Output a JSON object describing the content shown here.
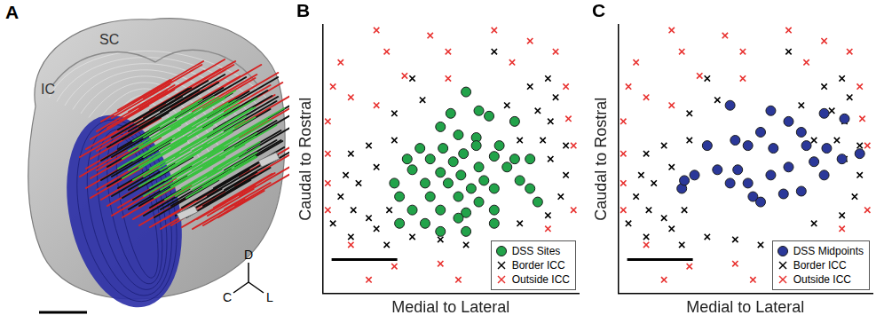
{
  "image_panel": {
    "panel_label": "A",
    "region_labels": [
      "SC",
      "IC"
    ],
    "direction_labels": [
      "D",
      "C",
      "L"
    ]
  },
  "chart_data": [
    {
      "panel_label": "B",
      "type": "scatter",
      "x_label": "Medial to Lateral",
      "y_label": "Caudal to Rostral",
      "xlim": [
        0,
        100
      ],
      "ylim": [
        0,
        100
      ],
      "tick_labels": false,
      "grid": false,
      "legend": "lower right",
      "series": [
        {
          "name": "DSS Sites",
          "color": "#22a34a",
          "marker": "circle",
          "x": [
            56,
            61,
            50,
            65,
            75,
            46,
            53,
            60,
            60,
            69,
            38,
            47,
            55,
            42,
            67,
            81,
            75,
            33,
            51,
            61,
            72,
            35,
            46,
            54,
            63,
            77,
            28,
            40,
            49,
            58,
            67,
            81,
            30,
            42,
            53,
            61,
            35,
            46,
            56,
            67,
            30,
            40,
            53,
            67,
            56,
            46,
            84
          ],
          "y": [
            75,
            68,
            67,
            66,
            64,
            62,
            59,
            58,
            55,
            55,
            54,
            54,
            52,
            50,
            51,
            50,
            50,
            50,
            49,
            47,
            47,
            46,
            45,
            44,
            42,
            42,
            41,
            41,
            41,
            39,
            39,
            39,
            36,
            36,
            36,
            34,
            31,
            31,
            30,
            31,
            26,
            26,
            28,
            26,
            23,
            23,
            34
          ]
        },
        {
          "name": "Border ICC",
          "color": "#000000",
          "marker": "x",
          "x": [
            35,
            67,
            88,
            81,
            84,
            89,
            95,
            39,
            28,
            18,
            11,
            9,
            14,
            7,
            12,
            18,
            4,
            11,
            21,
            25,
            35,
            46,
            56,
            77,
            88,
            93,
            95,
            89,
            86,
            77,
            72,
            28,
            21,
            26,
            91
          ],
          "y": [
            80,
            90,
            80,
            77,
            68,
            64,
            55,
            72,
            67,
            55,
            52,
            44,
            41,
            36,
            31,
            28,
            26,
            21,
            24,
            18,
            21,
            20,
            18,
            26,
            29,
            36,
            44,
            50,
            57,
            57,
            70,
            57,
            47,
            31,
            73
          ]
        },
        {
          "name": "Outside ICC",
          "color": "#e8312f",
          "marker": "x",
          "x": [
            21,
            42,
            67,
            81,
            91,
            7,
            25,
            49,
            32,
            74,
            95,
            11,
            2,
            96,
            2,
            21,
            98,
            88,
            2,
            2,
            11,
            28,
            46,
            98,
            49,
            4,
            18,
            53
          ],
          "y": [
            98,
            96,
            98,
            94,
            90,
            86,
            90,
            90,
            81,
            86,
            77,
            73,
            64,
            65,
            52,
            70,
            55,
            24,
            41,
            31,
            18,
            10,
            11,
            31,
            80,
            77,
            5,
            5
          ]
        }
      ]
    },
    {
      "panel_label": "C",
      "type": "scatter",
      "x_label": "Medial to Lateral",
      "y_label": "Caudal to Rostral",
      "xlim": [
        0,
        100
      ],
      "ylim": [
        0,
        100
      ],
      "tick_labels": false,
      "grid": false,
      "legend": "lower right",
      "series": [
        {
          "name": "DSS Midpoints",
          "color": "#2b3899",
          "marker": "circle",
          "x": [
            44,
            60,
            67,
            72,
            81,
            89,
            56,
            46,
            51,
            61,
            74,
            82,
            35,
            77,
            88,
            67,
            95,
            81,
            39,
            47,
            60,
            30,
            51,
            25,
            26,
            53,
            65,
            72,
            44,
            56
          ],
          "y": [
            70,
            68,
            64,
            60,
            67,
            65,
            60,
            57,
            55,
            54,
            55,
            54,
            55,
            49,
            50,
            47,
            52,
            44,
            46,
            46,
            44,
            44,
            41,
            39,
            42,
            36,
            37,
            38,
            41,
            34
          ]
        },
        {
          "name": "Border ICC",
          "color": "#000000",
          "marker": "x",
          "x": [
            35,
            67,
            88,
            81,
            84,
            89,
            95,
            39,
            28,
            18,
            11,
            9,
            14,
            7,
            12,
            18,
            4,
            11,
            21,
            25,
            35,
            46,
            56,
            77,
            88,
            93,
            95,
            89,
            86,
            77,
            72,
            28,
            21,
            26,
            91
          ],
          "y": [
            80,
            90,
            80,
            77,
            68,
            64,
            55,
            72,
            67,
            55,
            52,
            44,
            41,
            36,
            31,
            28,
            26,
            21,
            24,
            18,
            21,
            20,
            18,
            26,
            29,
            36,
            44,
            50,
            57,
            57,
            70,
            57,
            47,
            31,
            73
          ]
        },
        {
          "name": "Outside ICC",
          "color": "#e8312f",
          "marker": "x",
          "x": [
            21,
            42,
            67,
            81,
            91,
            7,
            25,
            49,
            32,
            74,
            95,
            11,
            2,
            96,
            2,
            21,
            98,
            88,
            2,
            2,
            11,
            28,
            46,
            98,
            49,
            4,
            18,
            53
          ],
          "y": [
            98,
            96,
            98,
            94,
            90,
            86,
            90,
            90,
            81,
            86,
            77,
            73,
            64,
            65,
            52,
            70,
            55,
            24,
            41,
            31,
            18,
            10,
            11,
            31,
            80,
            77,
            5,
            5
          ]
        }
      ]
    }
  ]
}
